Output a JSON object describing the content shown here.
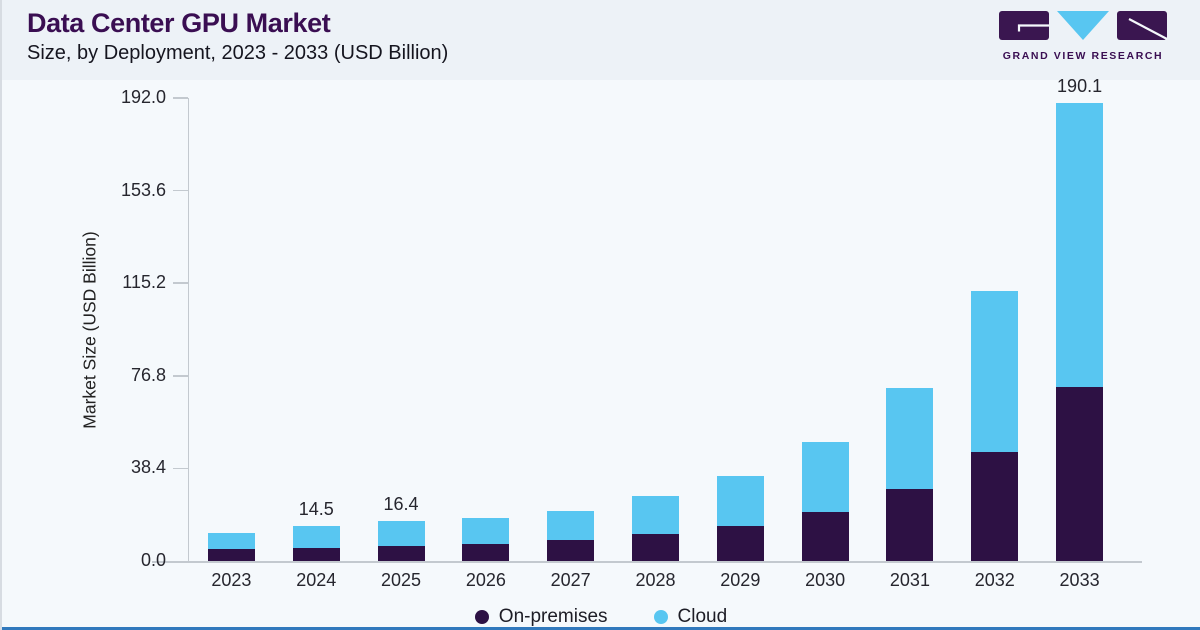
{
  "colors": {
    "background": "#edf2f7",
    "panel": "#f5f9fc",
    "accent_purple": "#2d1144",
    "accent_blue": "#58c6f1",
    "title_purple": "#3a0e52",
    "axis": "#c3c9cf",
    "text_dark": "#26262e",
    "bottom_bar": "#3179bd"
  },
  "header": {
    "title": "Data Center GPU Market",
    "subtitle": "Size, by Deployment, 2023 - 2033 (USD Billion)"
  },
  "logo": {
    "company": "GRAND VIEW RESEARCH"
  },
  "chart_data": {
    "type": "bar",
    "stacked": true,
    "title": "Data Center GPU Market",
    "subtitle": "Size, by Deployment, 2023 - 2033 (USD Billion)",
    "ylabel": "Market Size (USD Billion)",
    "categories": [
      "2023",
      "2024",
      "2025",
      "2026",
      "2027",
      "2028",
      "2029",
      "2030",
      "2031",
      "2032",
      "2033"
    ],
    "series": [
      {
        "name": "On-premises",
        "color": "#2d1144",
        "values": [
          5.1,
          5.4,
          6.1,
          7.2,
          8.9,
          11.0,
          14.6,
          20.3,
          29.7,
          45.2,
          72.1
        ]
      },
      {
        "name": "Cloud",
        "color": "#58c6f1",
        "values": [
          6.6,
          9.1,
          10.3,
          10.6,
          12.0,
          15.8,
          20.6,
          29.0,
          42.2,
          66.7,
          118.0
        ]
      }
    ],
    "totals": [
      11.7,
      14.5,
      16.4,
      17.8,
      20.9,
      26.8,
      35.2,
      49.3,
      71.9,
      111.9,
      190.1
    ],
    "bar_value_labels": [
      "",
      "14.5",
      "16.4",
      "",
      "",
      "",
      "",
      "",
      "",
      "",
      "190.1"
    ],
    "ytick_labels": [
      "0.0",
      "38.4",
      "76.8",
      "115.2",
      "153.6",
      "192.0"
    ],
    "ylim": [
      0,
      192
    ],
    "grid": false,
    "legend_position": "bottom"
  }
}
